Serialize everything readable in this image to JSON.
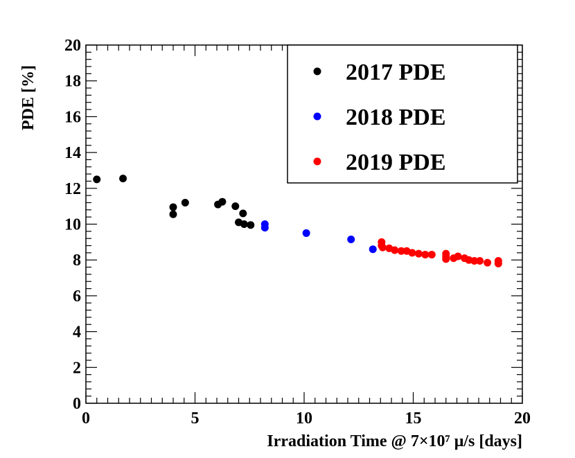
{
  "chart_data": {
    "type": "scatter",
    "title": "",
    "xlabel": "Irradiation Time @ 7×10⁷ μ/s [days]",
    "ylabel": "PDE [%]",
    "xlim": [
      0,
      20
    ],
    "ylim": [
      0,
      20
    ],
    "x_ticks": [
      "0",
      "5",
      "10",
      "15",
      "20"
    ],
    "y_ticks": [
      "0",
      "2",
      "4",
      "6",
      "8",
      "10",
      "12",
      "14",
      "16",
      "18",
      "20"
    ],
    "grid": false,
    "legend_position": "top-right",
    "series": [
      {
        "name": "2017 PDE",
        "color": "#000000",
        "points": [
          [
            0.5,
            12.5
          ],
          [
            1.7,
            12.55
          ],
          [
            4.0,
            10.95
          ],
          [
            4.0,
            10.55
          ],
          [
            4.55,
            11.2
          ],
          [
            6.05,
            11.1
          ],
          [
            6.25,
            11.25
          ],
          [
            6.85,
            11.0
          ],
          [
            7.0,
            10.1
          ],
          [
            7.2,
            10.6
          ],
          [
            7.25,
            10.0
          ],
          [
            7.55,
            9.95
          ]
        ]
      },
      {
        "name": "2018 PDE",
        "color": "#0000ff",
        "points": [
          [
            8.2,
            10.0
          ],
          [
            8.2,
            9.8
          ],
          [
            10.1,
            9.5
          ],
          [
            12.15,
            9.15
          ],
          [
            13.15,
            8.6
          ]
        ]
      },
      {
        "name": "2019 PDE",
        "color": "#ff0000",
        "points": [
          [
            13.55,
            9.0
          ],
          [
            13.55,
            8.8
          ],
          [
            13.6,
            8.7
          ],
          [
            13.9,
            8.65
          ],
          [
            14.15,
            8.55
          ],
          [
            14.45,
            8.5
          ],
          [
            14.7,
            8.5
          ],
          [
            14.95,
            8.4
          ],
          [
            15.25,
            8.35
          ],
          [
            15.55,
            8.3
          ],
          [
            15.85,
            8.3
          ],
          [
            16.5,
            8.35
          ],
          [
            16.5,
            8.2
          ],
          [
            16.5,
            8.05
          ],
          [
            16.85,
            8.1
          ],
          [
            17.05,
            8.2
          ],
          [
            17.35,
            8.1
          ],
          [
            17.55,
            8.0
          ],
          [
            17.8,
            7.95
          ],
          [
            18.05,
            7.95
          ],
          [
            18.4,
            7.85
          ],
          [
            18.9,
            7.95
          ],
          [
            18.9,
            7.8
          ]
        ]
      }
    ]
  }
}
